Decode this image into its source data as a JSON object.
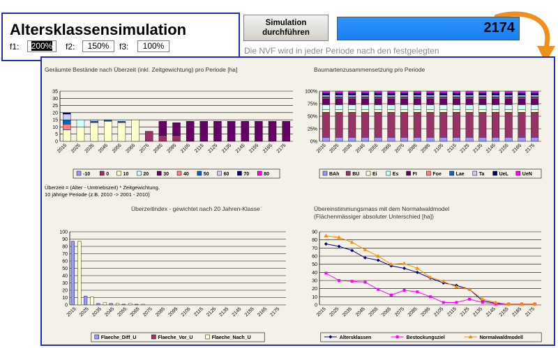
{
  "app_title": "Altersklassensimulation",
  "factors": [
    {
      "label": "f1:",
      "value": "200%",
      "selected": true
    },
    {
      "label": "f2:",
      "value": "150%",
      "selected": false
    },
    {
      "label": "f3:",
      "value": "100%",
      "selected": false
    }
  ],
  "simulate_button": {
    "line1": "Simulation",
    "line2": "durchführen"
  },
  "counter_value": "2174",
  "nvf_text": "Die NVF wird in jeder Periode nach den festgelegten",
  "colors": {
    "accent_blue": "#1f2fb8",
    "counter_bg": "#2a95ff",
    "arrow": "#f0901c"
  },
  "years": [
    "2015",
    "2025",
    "2035",
    "2045",
    "2055",
    "2065",
    "2075",
    "2085",
    "2095",
    "2105",
    "2115",
    "2125",
    "2135",
    "2145",
    "2155",
    "2165",
    "2175"
  ],
  "notes": {
    "line1": "Überzeit = (Alter - Umtriebszeit) * Zeitgewichtung.",
    "line2": "10 jährige Periode (z.B. 2010 -> 2001 - 2010)"
  },
  "chart_data": [
    {
      "type": "bar",
      "stacked": true,
      "title": "Geräumte Bestände nach Überzeit (inkl. Zeitgewichtung) pro Periode [ha]",
      "ylim": [
        0,
        35
      ],
      "yticks": [
        "0",
        "5",
        "10",
        "15",
        "20",
        "25",
        "30",
        "35"
      ],
      "legend_position": "bottom",
      "series": [
        {
          "name": "-10",
          "color": "#9999ff",
          "values": [
            0,
            0,
            0,
            0,
            0,
            0,
            0,
            0,
            0,
            0,
            0,
            0,
            0,
            0,
            0,
            0,
            0
          ]
        },
        {
          "name": "0",
          "color": "#993366",
          "values": [
            0,
            0,
            0,
            0,
            0,
            0,
            7,
            4,
            4,
            0,
            0,
            0,
            0,
            0,
            0,
            0,
            0
          ]
        },
        {
          "name": "10",
          "color": "#ffffcc",
          "values": [
            8,
            10,
            13,
            14,
            13,
            15,
            0,
            0,
            0,
            0,
            0,
            0,
            0,
            0,
            0,
            0,
            0
          ]
        },
        {
          "name": "20",
          "color": "#ccffff",
          "values": [
            0,
            5,
            0,
            0,
            0,
            0,
            0,
            0,
            0,
            0,
            0,
            0,
            0,
            0,
            0,
            0,
            0
          ]
        },
        {
          "name": "30",
          "color": "#660066",
          "values": [
            0,
            0,
            0,
            0,
            0,
            0,
            0,
            10,
            9,
            14,
            14,
            14,
            14,
            14,
            14,
            14,
            14
          ]
        },
        {
          "name": "40",
          "color": "#ff8080",
          "values": [
            4,
            0,
            0,
            0,
            0,
            0,
            0,
            0,
            0,
            0,
            0,
            0,
            0,
            0,
            0,
            0,
            0
          ]
        },
        {
          "name": "50",
          "color": "#0066cc",
          "values": [
            3,
            0,
            1,
            1,
            1,
            0,
            0,
            0,
            0,
            0,
            0,
            0,
            0,
            0,
            0,
            0,
            0
          ]
        },
        {
          "name": "60",
          "color": "#ccccff",
          "values": [
            4,
            0,
            1,
            0,
            0,
            0,
            0,
            0,
            0,
            0,
            0,
            0,
            0,
            0,
            0,
            0,
            0
          ]
        },
        {
          "name": "70",
          "color": "#000080",
          "values": [
            1,
            0,
            0,
            0,
            0,
            0,
            0,
            0,
            0,
            0,
            0,
            0,
            0,
            0,
            0,
            0,
            0
          ]
        },
        {
          "name": "80",
          "color": "#ff00ff",
          "values": [
            0,
            0,
            0,
            0,
            0,
            0,
            0,
            0,
            0,
            0,
            0,
            0,
            0,
            0,
            0,
            0,
            0
          ]
        }
      ]
    },
    {
      "type": "bar",
      "stacked": true,
      "percent": true,
      "title": "Baumartenzusammensetzung pro Periode",
      "ylim": [
        0,
        100
      ],
      "yticks": [
        "0%",
        "25%",
        "50%",
        "75%",
        "100%"
      ],
      "legend_position": "bottom",
      "series": [
        {
          "name": "BAh",
          "color": "#9999ff",
          "values": [
            8,
            8,
            8,
            8,
            8,
            8,
            8,
            8,
            8,
            8,
            8,
            8,
            8,
            8,
            8,
            8,
            8
          ]
        },
        {
          "name": "BU",
          "color": "#993366",
          "values": [
            50,
            50,
            50,
            50,
            50,
            50,
            50,
            50,
            50,
            50,
            50,
            50,
            50,
            50,
            50,
            50,
            50
          ]
        },
        {
          "name": "Ei",
          "color": "#ffffcc",
          "values": [
            5,
            5,
            5,
            5,
            5,
            5,
            5,
            5,
            5,
            5,
            5,
            5,
            5,
            5,
            5,
            5,
            5
          ]
        },
        {
          "name": "Es",
          "color": "#ccffff",
          "values": [
            10,
            10,
            10,
            10,
            10,
            10,
            10,
            10,
            10,
            10,
            10,
            10,
            10,
            10,
            10,
            10,
            10
          ]
        },
        {
          "name": "FI",
          "color": "#660066",
          "values": [
            12,
            12,
            12,
            12,
            12,
            12,
            12,
            12,
            12,
            12,
            12,
            12,
            12,
            12,
            12,
            12,
            12
          ]
        },
        {
          "name": "Foe",
          "color": "#ff8080",
          "values": [
            2,
            2,
            2,
            2,
            2,
            2,
            2,
            2,
            2,
            2,
            2,
            2,
            2,
            2,
            2,
            2,
            2
          ]
        },
        {
          "name": "Lae",
          "color": "#0066cc",
          "values": [
            2,
            2,
            2,
            2,
            2,
            2,
            2,
            2,
            2,
            2,
            2,
            2,
            2,
            2,
            2,
            2,
            2
          ]
        },
        {
          "name": "Ta",
          "color": "#ccccff",
          "values": [
            3,
            3,
            3,
            3,
            3,
            3,
            3,
            3,
            3,
            3,
            3,
            3,
            3,
            3,
            3,
            3,
            3
          ]
        },
        {
          "name": "UeL",
          "color": "#000080",
          "values": [
            4,
            4,
            4,
            4,
            4,
            4,
            4,
            4,
            4,
            4,
            4,
            4,
            4,
            4,
            4,
            4,
            4
          ]
        },
        {
          "name": "UeN",
          "color": "#ff00ff",
          "values": [
            4,
            4,
            4,
            4,
            4,
            4,
            4,
            4,
            4,
            4,
            4,
            4,
            4,
            4,
            4,
            4,
            4
          ]
        }
      ]
    },
    {
      "type": "bar",
      "stacked": false,
      "title": "Überzeitindex - gewichtet nach 20 Jahren-Klasse",
      "ylim": [
        0,
        100
      ],
      "yticks": [
        "0",
        "10",
        "20",
        "30",
        "40",
        "50",
        "60",
        "70",
        "80",
        "90",
        "100"
      ],
      "legend_position": "bottom",
      "series": [
        {
          "name": "Flaeche_Diff_U",
          "color": "#9999ff",
          "values": [
            87,
            12,
            2,
            2,
            1,
            1,
            0,
            0,
            0,
            0,
            0,
            0,
            0,
            0,
            0,
            0,
            0
          ]
        },
        {
          "name": "Flaeche_Vor_U",
          "color": "#993366",
          "values": [
            0,
            0,
            0,
            0,
            0,
            0,
            0,
            0,
            0,
            0,
            0,
            0,
            0,
            0,
            0,
            0,
            0
          ]
        },
        {
          "name": "Flaeche_Nach_U",
          "color": "#ffffcc",
          "values": [
            87,
            11,
            3,
            2,
            2,
            1,
            0,
            0,
            0,
            0,
            0,
            0,
            0,
            0,
            0,
            0,
            0
          ]
        }
      ]
    },
    {
      "type": "line",
      "title": "Übereinstimmungsmass mit dem  Normalwaldmodel",
      "subtitle": "(Flächenmässiger absoluter Unterschied [ha])",
      "ylim": [
        0,
        90
      ],
      "yticks": [
        "0",
        "10",
        "20",
        "30",
        "40",
        "50",
        "60",
        "70",
        "80",
        "90"
      ],
      "legend_position": "bottom",
      "series": [
        {
          "name": "Altersklassen",
          "color": "#000080",
          "marker": "diamond",
          "values": [
            75,
            72,
            67,
            58,
            55,
            48,
            45,
            40,
            33,
            27,
            24,
            19,
            5,
            2,
            1,
            1,
            1
          ]
        },
        {
          "name": "Bestockungsziel",
          "color": "#ff00ff",
          "marker": "square",
          "values": [
            39,
            30,
            29,
            28,
            19,
            12,
            18,
            16,
            10,
            3,
            3,
            7,
            3,
            1,
            1,
            1,
            1
          ]
        },
        {
          "name": "Normalwaldmodell",
          "color": "#ff8c00",
          "marker": "triangle",
          "values": [
            85,
            83,
            77,
            68,
            60,
            50,
            51,
            45,
            34,
            29,
            22,
            19,
            7,
            3,
            1,
            1,
            1
          ]
        }
      ]
    }
  ]
}
